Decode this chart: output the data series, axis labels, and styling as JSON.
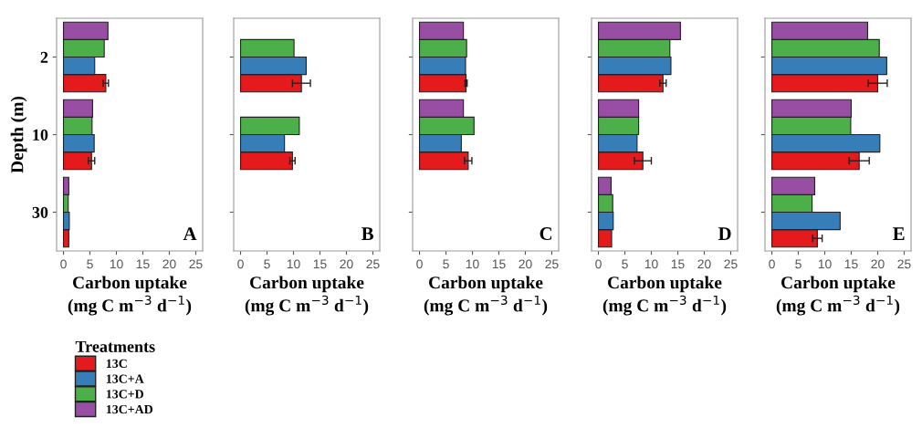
{
  "chart_data": [
    {
      "type": "bar",
      "orientation": "horizontal",
      "categories": [
        "2",
        "10",
        "30"
      ],
      "ylabel": "Depth (m)",
      "xlabel": "Carbon uptake\n(mg C m$^{−3}$ d$^{−1}$)",
      "annotations": [
        "A"
      ],
      "xlim": [
        -1.3,
        26.3
      ],
      "xticks": [
        0,
        5,
        10,
        15,
        20,
        25
      ],
      "grid": false,
      "legend": "bottom left",
      "legend_title": "Treatments",
      "series": [
        {
          "name": "13C",
          "color": "#e41a1c",
          "values": [
            8.0,
            5.3,
            1.0
          ],
          "errors": [
            0.5,
            0.6,
            null
          ]
        },
        {
          "name": "13C+A",
          "color": "#377eb8",
          "values": [
            5.9,
            5.8,
            1.1
          ]
        },
        {
          "name": "13C+D",
          "color": "#4daf4a",
          "values": [
            7.7,
            5.4,
            0.9
          ]
        },
        {
          "name": "13C+AD",
          "color": "#984ea3",
          "values": [
            8.4,
            5.5,
            1.0
          ]
        }
      ]
    },
    {
      "type": "bar",
      "orientation": "horizontal",
      "categories": [
        "2",
        "10",
        "30"
      ],
      "tick_labels": "x",
      "xlabel": "Carbon uptake\n(mg C m$^{−3}$ d$^{−1}$)",
      "annotations": [
        "B"
      ],
      "xlim": [
        -1.3,
        26.3
      ],
      "xticks": [
        0,
        5,
        10,
        15,
        20,
        25
      ],
      "grid": false,
      "series": [
        {
          "color": "#e41a1c",
          "values": [
            11.5,
            9.8,
            null
          ],
          "errors": [
            1.7,
            0.5,
            null
          ]
        },
        {
          "color": "#377eb8",
          "values": [
            12.4,
            8.3,
            null
          ]
        },
        {
          "color": "#4daf4a",
          "values": [
            10.1,
            11.1,
            null
          ]
        },
        {
          "values": [
            null,
            null,
            null
          ]
        }
      ]
    },
    {
      "type": "bar",
      "orientation": "horizontal",
      "categories": [
        "2",
        "10",
        "30"
      ],
      "tick_labels": "x",
      "xlabel": "Carbon uptake\n(mg C m$^{−3}$ d$^{−1}$)",
      "annotations": [
        "C"
      ],
      "xlim": [
        -1.3,
        26.3
      ],
      "xticks": [
        0,
        5,
        10,
        15,
        20,
        25
      ],
      "grid": false,
      "series": [
        {
          "color": "#e41a1c",
          "values": [
            8.8,
            9.2,
            null
          ],
          "errors": [
            0.2,
            0.7,
            null
          ]
        },
        {
          "color": "#377eb8",
          "values": [
            8.7,
            7.9,
            null
          ]
        },
        {
          "color": "#4daf4a",
          "values": [
            8.9,
            10.3,
            null
          ]
        },
        {
          "color": "#984ea3",
          "values": [
            8.3,
            8.3,
            null
          ]
        }
      ]
    },
    {
      "type": "bar",
      "orientation": "horizontal",
      "categories": [
        "2",
        "10",
        "30"
      ],
      "tick_labels": "x",
      "xlabel": "Carbon uptake\n(mg C m$^{−3}$ d$^{−1}$)",
      "annotations": [
        "D"
      ],
      "xlim": [
        -1.3,
        26.3
      ],
      "xticks": [
        0,
        5,
        10,
        15,
        20,
        25
      ],
      "grid": false,
      "series": [
        {
          "color": "#e41a1c",
          "values": [
            12.2,
            8.4,
            2.5
          ],
          "errors": [
            0.6,
            1.6,
            null
          ]
        },
        {
          "color": "#377eb8",
          "values": [
            13.7,
            7.3,
            2.8
          ]
        },
        {
          "color": "#4daf4a",
          "values": [
            13.5,
            7.6,
            2.7
          ]
        },
        {
          "color": "#984ea3",
          "values": [
            15.5,
            7.6,
            2.4
          ]
        }
      ]
    },
    {
      "type": "bar",
      "orientation": "horizontal",
      "categories": [
        "2",
        "10",
        "30"
      ],
      "tick_labels": "x",
      "xlabel": "Carbon uptake\n(mg C m$^{−3}$ d$^{−1}$)",
      "annotations": [
        "E"
      ],
      "xlim": [
        -1.3,
        26.3
      ],
      "xticks": [
        0,
        5,
        10,
        15,
        20,
        25
      ],
      "grid": false,
      "series": [
        {
          "color": "#e41a1c",
          "values": [
            20.0,
            16.5,
            8.6
          ],
          "errors": [
            1.8,
            1.9,
            0.9
          ]
        },
        {
          "color": "#377eb8",
          "values": [
            21.7,
            20.4,
            12.9
          ]
        },
        {
          "color": "#4daf4a",
          "values": [
            20.3,
            14.9,
            7.6
          ]
        },
        {
          "color": "#984ea3",
          "values": [
            18.1,
            15.0,
            8.1
          ]
        }
      ]
    }
  ]
}
